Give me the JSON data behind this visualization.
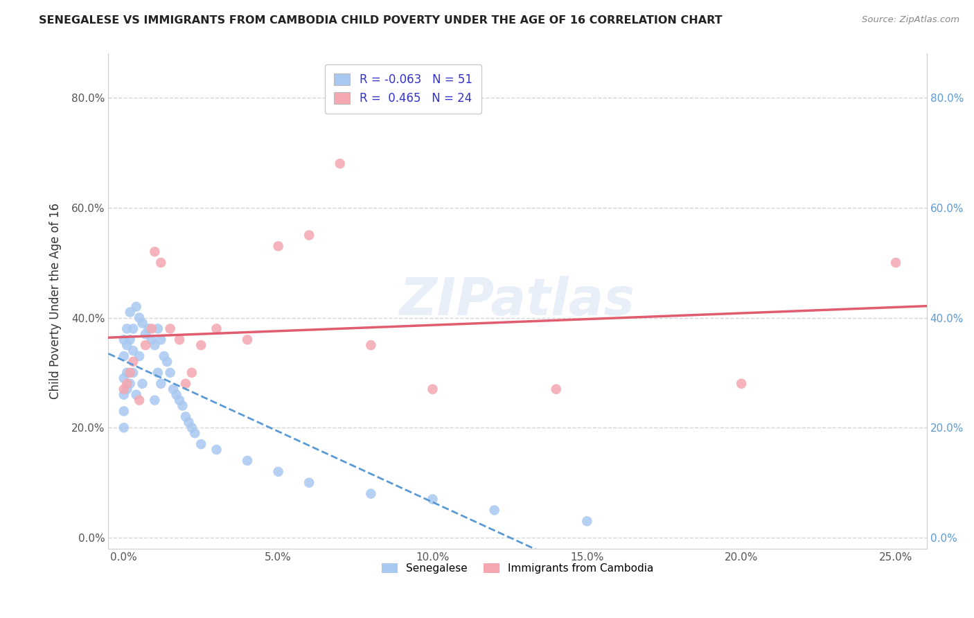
{
  "title": "SENEGALESE VS IMMIGRANTS FROM CAMBODIA CHILD POVERTY UNDER THE AGE OF 16 CORRELATION CHART",
  "source": "Source: ZipAtlas.com",
  "ylabel": "Child Poverty Under the Age of 16",
  "watermark": "ZIPatlas",
  "senegalese": {
    "R": -0.063,
    "N": 51,
    "color": "#a8c8f0",
    "line_color": "#5b9bd5",
    "x": [
      0.0,
      0.0,
      0.0,
      0.0,
      0.0,
      0.0,
      0.1,
      0.1,
      0.1,
      0.1,
      0.2,
      0.2,
      0.2,
      0.3,
      0.3,
      0.3,
      0.4,
      0.4,
      0.5,
      0.5,
      0.6,
      0.6,
      0.7,
      0.8,
      0.9,
      1.0,
      1.0,
      1.1,
      1.1,
      1.2,
      1.2,
      1.3,
      1.4,
      1.5,
      1.6,
      1.7,
      1.8,
      1.9,
      2.0,
      2.1,
      2.2,
      2.3,
      2.5,
      3.0,
      4.0,
      5.0,
      6.0,
      8.0,
      10.0,
      12.0,
      15.0
    ],
    "y": [
      36.0,
      33.0,
      29.0,
      26.0,
      23.0,
      20.0,
      38.0,
      35.0,
      30.0,
      27.0,
      41.0,
      36.0,
      28.0,
      38.0,
      34.0,
      30.0,
      42.0,
      26.0,
      40.0,
      33.0,
      39.0,
      28.0,
      37.0,
      38.0,
      36.0,
      35.0,
      25.0,
      38.0,
      30.0,
      36.0,
      28.0,
      33.0,
      32.0,
      30.0,
      27.0,
      26.0,
      25.0,
      24.0,
      22.0,
      21.0,
      20.0,
      19.0,
      17.0,
      16.0,
      14.0,
      12.0,
      10.0,
      8.0,
      7.0,
      5.0,
      3.0
    ]
  },
  "cambodia": {
    "R": 0.465,
    "N": 24,
    "color": "#f4a7b0",
    "line_color": "#e05c6e",
    "x": [
      0.0,
      0.1,
      0.2,
      0.3,
      0.5,
      0.7,
      0.9,
      1.0,
      1.2,
      1.5,
      1.8,
      2.0,
      2.2,
      2.5,
      3.0,
      4.0,
      5.0,
      6.0,
      7.0,
      8.0,
      10.0,
      14.0,
      20.0,
      25.0
    ],
    "y": [
      27.0,
      28.0,
      30.0,
      32.0,
      25.0,
      35.0,
      38.0,
      52.0,
      50.0,
      38.0,
      36.0,
      28.0,
      30.0,
      35.0,
      38.0,
      36.0,
      53.0,
      55.0,
      68.0,
      35.0,
      27.0,
      27.0,
      28.0,
      50.0
    ]
  },
  "xlim": [
    -0.5,
    26.0
  ],
  "ylim": [
    -2.0,
    88.0
  ],
  "yticks": [
    0.0,
    20.0,
    40.0,
    60.0,
    80.0
  ],
  "ytick_labels": [
    "0.0%",
    "20.0%",
    "40.0%",
    "60.0%",
    "80.0%"
  ],
  "xticks": [
    0.0,
    5.0,
    10.0,
    15.0,
    20.0,
    25.0
  ],
  "xtick_labels": [
    "0.0%",
    "5.0%",
    "10.0%",
    "15.0%",
    "20.0%",
    "25.0%"
  ],
  "legend_labels": [
    "Senegalese",
    "Immigrants from Cambodia"
  ],
  "background_color": "#ffffff",
  "grid_color": "#d5d5d5"
}
